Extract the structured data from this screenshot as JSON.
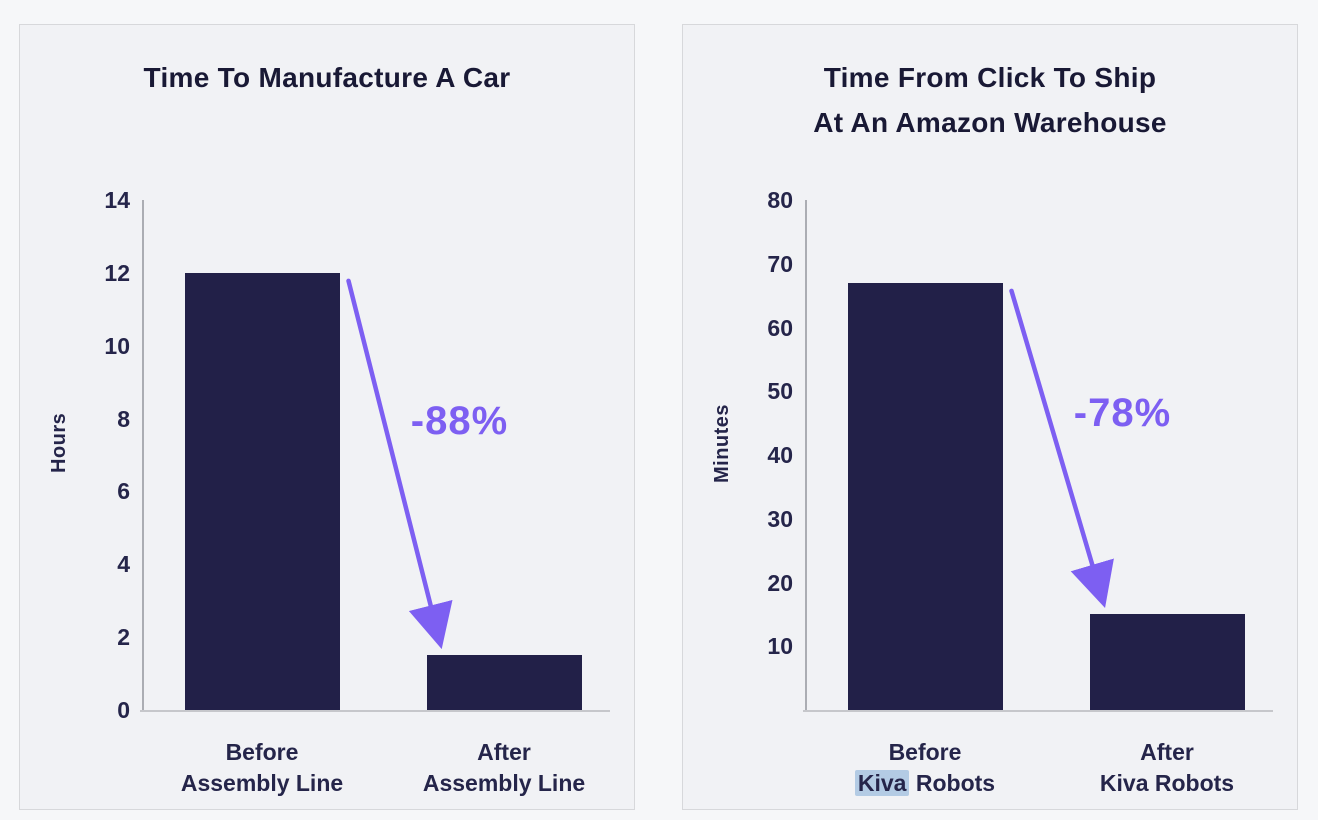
{
  "colors": {
    "page_background": "#f6f7f9",
    "panel_background": "#f1f2f5",
    "panel_border": "#d7d8db",
    "bar_navy": "#222048",
    "accent_purple": "#7d5ff2",
    "text_navy": "#25254a",
    "title_navy": "#191935",
    "axis_gray": "#abadb3",
    "kiva_highlight_blue": "#b3cbe4"
  },
  "chart_data": [
    {
      "type": "bar",
      "title_lines": [
        "Time To Manufacture A Car"
      ],
      "ylabel": "Hours",
      "ylim": [
        0,
        14
      ],
      "yticks": [
        14,
        12,
        10,
        8,
        6,
        4,
        2,
        0
      ],
      "categories": [
        [
          "Before",
          "Assembly Line"
        ],
        [
          "After",
          "Assembly Line"
        ]
      ],
      "values": [
        12,
        1.5
      ],
      "annotation": {
        "label": "-88%",
        "shape": "decline-arrow",
        "color": "#7d5ff2"
      },
      "grid": false,
      "legend": "none"
    },
    {
      "type": "bar",
      "title_lines": [
        "Time From Click To Ship",
        "At An Amazon Warehouse"
      ],
      "ylabel": "Minutes",
      "ylim": [
        0,
        80
      ],
      "yticks": [
        80,
        70,
        60,
        50,
        40,
        30,
        20,
        10
      ],
      "categories": [
        [
          "Before",
          "Kiva Robots"
        ],
        [
          "After",
          "Kiva Robots"
        ]
      ],
      "values": [
        67,
        15
      ],
      "annotation": {
        "label": "-78%",
        "shape": "decline-arrow",
        "color": "#7d5ff2"
      },
      "highlight": {
        "word": "Kiva",
        "category_index": 0
      },
      "grid": false,
      "legend": "none"
    }
  ]
}
